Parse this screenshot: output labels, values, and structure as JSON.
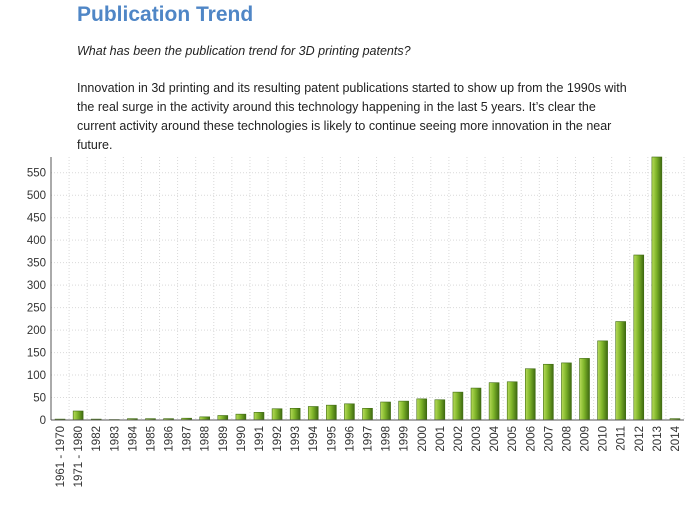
{
  "page": {
    "title": "Publication Trend",
    "question": "What has been the publication trend for 3D printing patents?",
    "description": "Innovation in 3d printing and its resulting patent publications started to show up from the 1990s with the real surge in the activity around this technology happening in the last 5 years. It’s clear the current activity around these technologies is likely to continue seeing more innovation in the near future."
  },
  "colors": {
    "title": "#4f86c6",
    "bar_light": "#b8dc5a",
    "bar_mid": "#7fb52a",
    "bar_dark": "#3e6a10",
    "grid": "#d9d9d9"
  },
  "chart_data": {
    "type": "bar",
    "title": "",
    "xlabel": "",
    "ylabel": "",
    "ylim": [
      0,
      585
    ],
    "yticks": [
      0,
      50,
      100,
      150,
      200,
      250,
      300,
      350,
      400,
      450,
      500,
      550
    ],
    "grid": true,
    "categories": [
      "1961 - 1970",
      "1971 - 1980",
      "1982",
      "1983",
      "1984",
      "1985",
      "1986",
      "1987",
      "1988",
      "1989",
      "1990",
      "1991",
      "1992",
      "1993",
      "1994",
      "1995",
      "1996",
      "1997",
      "1998",
      "1999",
      "2000",
      "2001",
      "2002",
      "2003",
      "2004",
      "2005",
      "2006",
      "2007",
      "2008",
      "2009",
      "2010",
      "2011",
      "2012",
      "2013",
      "2014"
    ],
    "values": [
      2,
      20,
      2,
      1,
      3,
      3,
      3,
      4,
      7,
      10,
      13,
      17,
      25,
      26,
      30,
      33,
      36,
      26,
      40,
      42,
      47,
      45,
      62,
      71,
      83,
      85,
      114,
      124,
      127,
      137,
      176,
      219,
      367,
      585,
      3
    ]
  }
}
